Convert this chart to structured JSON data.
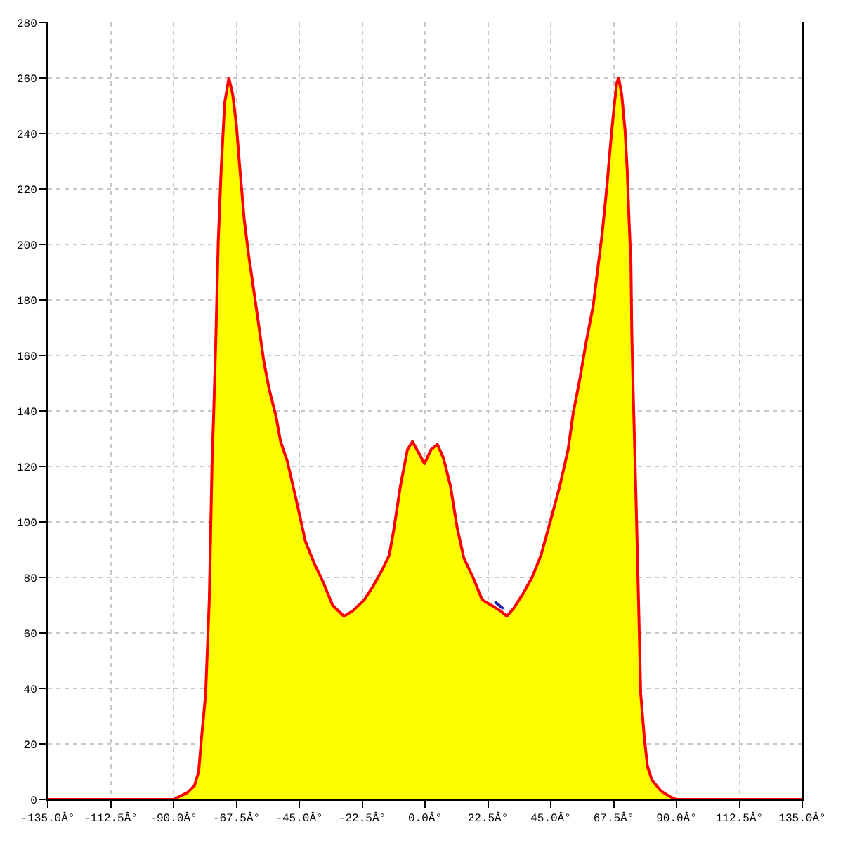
{
  "chart_data": {
    "type": "line",
    "x": [
      -135,
      -90,
      -85,
      -82.5,
      -81,
      -80,
      -78.5,
      -77.2,
      -76.2,
      -75.6,
      -74.8,
      -74,
      -72.9,
      -71.7,
      -70.2,
      -68.8,
      -67.5,
      -66.4,
      -64.7,
      -63.1,
      -61.5,
      -59.8,
      -57.7,
      -55.8,
      -53.3,
      -51.7,
      -49.3,
      -46.1,
      -42.8,
      -39.6,
      -36.3,
      -33.1,
      -29,
      -25.8,
      -21.7,
      -18.5,
      -15.2,
      -12.8,
      -11.2,
      -8.8,
      -6.3,
      -4.5,
      -2.3,
      -0.2,
      2.1,
      4.4,
      6.6,
      9.1,
      11.5,
      13.9,
      17.2,
      20.4,
      23.7,
      26.9,
      29.3,
      31.8,
      35,
      38.3,
      41.5,
      44.8,
      48,
      51.2,
      53,
      55.3,
      57.7,
      60.2,
      61.8,
      63.4,
      65.1,
      66.2,
      67.5,
      68.6,
      69.3,
      70.4,
      71.6,
      72.4,
      73,
      73.7,
      74,
      74.5,
      75,
      75.6,
      76.4,
      77.2,
      78.5,
      79.6,
      81.2,
      84.5,
      87.7,
      90,
      135
    ],
    "series": [
      {
        "type": "area",
        "color": "#ffff00",
        "x": [
          -90,
          -85,
          -82.5,
          -81,
          -80,
          -78.5,
          -77.2,
          -76.2,
          -75.6,
          -74.8,
          -74,
          -72.9,
          -71.7,
          -70.2,
          -68.8,
          -67.5,
          -66.4,
          -64.7,
          -63.1,
          -61.5,
          -59.8,
          -57.7,
          -55.8,
          -53.3,
          -51.7,
          -49.3,
          -46.1,
          -42.8,
          -39.6,
          -36.3,
          -33.1,
          -29,
          -25.8,
          -21.7,
          -18.5,
          -15.2,
          -12.8,
          -11.2,
          -8.8,
          -6.3,
          -4.5,
          -2.3,
          -0.2,
          2.1,
          4.4,
          6.6,
          9.1,
          11.5,
          13.9,
          17.2,
          20.4,
          23.7,
          26.9,
          29.3,
          31.8,
          35,
          38.3,
          41.5,
          44.8,
          48,
          51.2,
          53,
          55.3,
          57.7,
          60.2,
          61.8,
          63.4,
          65.1,
          66.2,
          67.5,
          68.6,
          69.3,
          70.4,
          71.6,
          72.4,
          73,
          73.7,
          74,
          74.5,
          75,
          75.6,
          76.4,
          77.2,
          78.5,
          79.6,
          81.2,
          84.5,
          87.7,
          90
        ],
        "values": [
          0,
          2.5,
          5,
          10,
          22,
          38,
          72,
          122,
          140,
          168,
          201,
          228,
          251,
          260,
          254,
          243,
          229,
          209,
          196,
          185,
          173,
          158,
          148,
          138,
          129,
          122,
          108,
          93,
          85,
          78,
          70,
          66,
          68,
          72,
          77,
          83,
          88,
          97,
          113,
          126,
          129,
          125,
          121,
          126,
          128,
          123,
          113,
          98,
          87,
          80,
          72,
          70,
          68,
          66,
          69,
          74,
          80,
          88,
          100,
          112,
          126,
          139,
          151,
          165,
          178,
          191,
          204,
          221,
          234,
          248,
          258,
          260,
          254,
          241,
          226,
          209,
          193,
          168,
          147,
          128,
          105,
          72,
          38,
          22,
          12,
          7,
          3,
          1,
          0
        ]
      },
      {
        "type": "line",
        "color": "#1c1ca8",
        "x": [
          25.3,
          27.7
        ],
        "values": [
          71,
          69
        ]
      },
      {
        "color": "#ff0000",
        "values": [
          0,
          0,
          2.5,
          5,
          10,
          22,
          38,
          72,
          122,
          140,
          168,
          201,
          228,
          251,
          260,
          254,
          243,
          229,
          209,
          196,
          185,
          173,
          158,
          148,
          138,
          129,
          122,
          108,
          93,
          85,
          78,
          70,
          66,
          68,
          72,
          77,
          83,
          88,
          97,
          113,
          126,
          129,
          125,
          121,
          126,
          128,
          123,
          113,
          98,
          87,
          80,
          72,
          70,
          68,
          66,
          69,
          74,
          80,
          88,
          100,
          112,
          126,
          139,
          151,
          165,
          178,
          191,
          204,
          221,
          234,
          248,
          258,
          260,
          254,
          241,
          226,
          209,
          193,
          168,
          147,
          128,
          105,
          72,
          38,
          22,
          12,
          7,
          3,
          1,
          0,
          0
        ]
      }
    ],
    "xlim": [
      -135,
      135
    ],
    "xticks": [
      {
        "value": -135,
        "label": "-135.0Â°"
      },
      {
        "value": -112.5,
        "label": "-112.5Â°"
      },
      {
        "value": -90,
        "label": "-90.0Â°"
      },
      {
        "value": -67.5,
        "label": "-67.5Â°"
      },
      {
        "value": -45,
        "label": "-45.0Â°"
      },
      {
        "value": -22.5,
        "label": "-22.5Â°"
      },
      {
        "value": 0,
        "label": "0.0Â°"
      },
      {
        "value": 22.5,
        "label": "22.5Â°"
      },
      {
        "value": 45,
        "label": "45.0Â°"
      },
      {
        "value": 67.5,
        "label": "67.5Â°"
      },
      {
        "value": 90,
        "label": "90.0Â°"
      },
      {
        "value": 112.5,
        "label": "112.5Â°"
      },
      {
        "value": 135,
        "label": "135.0Â°"
      }
    ],
    "ylim": [
      0,
      280
    ],
    "yticks": [
      0,
      20,
      40,
      60,
      80,
      100,
      120,
      140,
      160,
      180,
      200,
      220,
      240,
      260,
      280
    ],
    "grid": true,
    "marker": "none",
    "line_style": "solid"
  }
}
